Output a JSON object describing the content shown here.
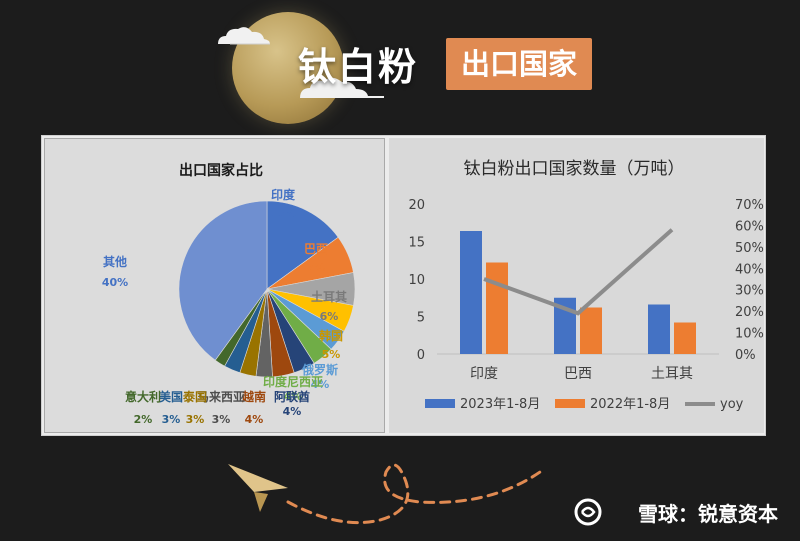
{
  "header": {
    "title": "钛白粉",
    "badge": "出口国家"
  },
  "watermark": "雪球：锐意资本",
  "chart_data": [
    {
      "type": "pie",
      "title": "出口国家占比",
      "slices": [
        {
          "label": "印度",
          "value": 15,
          "value_label": "15%",
          "color": "#4472c4"
        },
        {
          "label": "巴西",
          "value": 7,
          "value_label": "7%",
          "color": "#ed7d31"
        },
        {
          "label": "土耳其",
          "value": 6,
          "value_label": "6%",
          "color": "#a5a5a5"
        },
        {
          "label": "韩国",
          "value": 5,
          "value_label": "5%",
          "color": "#ffc000"
        },
        {
          "label": "俄罗斯",
          "value": 4,
          "value_label": "4%",
          "color": "#5b9bd5"
        },
        {
          "label": "印度尼西亚",
          "value": 4,
          "value_label": "4%",
          "color": "#70ad47"
        },
        {
          "label": "阿联酋",
          "value": 4,
          "value_label": "4%",
          "color": "#264478"
        },
        {
          "label": "越南",
          "value": 4,
          "value_label": "4%",
          "color": "#9e480e"
        },
        {
          "label": "马来西亚",
          "value": 3,
          "value_label": "3%",
          "color": "#636363"
        },
        {
          "label": "泰国",
          "value": 3,
          "value_label": "3%",
          "color": "#997300"
        },
        {
          "label": "美国",
          "value": 3,
          "value_label": "3%",
          "color": "#255e91"
        },
        {
          "label": "意大利",
          "value": 2,
          "value_label": "2%",
          "color": "#43682b"
        },
        {
          "label": "其他",
          "value": 40,
          "value_label": "40%",
          "color": "#6f8fd0"
        }
      ]
    },
    {
      "type": "bar",
      "title": "钛白粉出口国家数量（万吨）",
      "categories": [
        "印度",
        "巴西",
        "土耳其"
      ],
      "series": [
        {
          "name": "2023年1-8月",
          "values": [
            16.4,
            7.5,
            6.6
          ],
          "color": "#4472c4"
        },
        {
          "name": "2022年1-8月",
          "values": [
            12.2,
            6.2,
            4.2
          ],
          "color": "#ed7d31"
        },
        {
          "name": "yoy",
          "values": [
            35,
            19,
            58
          ],
          "axis": "right",
          "type": "line",
          "color": "#8c8c8c"
        }
      ],
      "ylim": [
        0,
        20
      ],
      "yticks": [
        "0",
        "5",
        "10",
        "15",
        "20"
      ],
      "y2lim": [
        0,
        70
      ],
      "y2ticks": [
        "0%",
        "10%",
        "20%",
        "30%",
        "40%",
        "50%",
        "60%",
        "70%"
      ],
      "legend_position": "bottom"
    }
  ]
}
